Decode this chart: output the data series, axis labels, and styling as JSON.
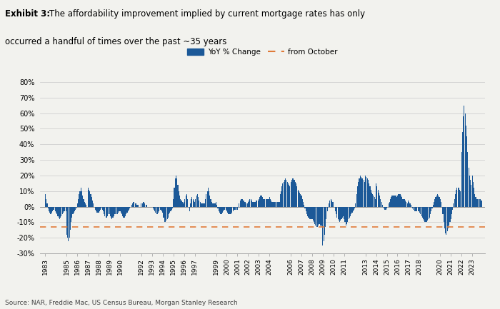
{
  "title_bold": "Exhibit 3:",
  "title_normal": "  The affordability improvement implied by current mortgage rates has only\n  occurred a handful of times over the past ~35 years",
  "source": "Source: NAR, Freddie Mac, US Census Bureau, Morgan Stanley Research",
  "bar_color": "#1c5998",
  "dashed_color": "#e07b39",
  "dashed_value": -13.0,
  "ylim": [
    -30,
    85
  ],
  "yticks": [
    -30,
    -20,
    -10,
    0,
    10,
    20,
    30,
    40,
    50,
    60,
    70,
    80
  ],
  "ytick_labels": [
    "-30%",
    "-20%",
    "-10%",
    "0%",
    "10%",
    "20%",
    "30%",
    "40%",
    "50%",
    "60%",
    "70%",
    "80%"
  ],
  "legend_bar_label": "YoY % Change",
  "legend_dash_label": "from October",
  "background_color": "#f2f2ee",
  "xlim_min": 1982.5,
  "xlim_max": 2024.2,
  "shown_years": [
    1983,
    1985,
    1986,
    1987,
    1988,
    1989,
    1990,
    1992,
    1993,
    1994,
    1995,
    1996,
    1997,
    1999,
    2000,
    2001,
    2002,
    2003,
    2004,
    2006,
    2007,
    2008,
    2009,
    2010,
    2011,
    2013,
    2014,
    2015,
    2016,
    2017,
    2018,
    2020,
    2021,
    2022,
    2023
  ],
  "monthly_data": [
    [
      1983.0,
      8
    ],
    [
      1983.08,
      5
    ],
    [
      1983.17,
      2
    ],
    [
      1983.25,
      -1
    ],
    [
      1983.33,
      -3
    ],
    [
      1983.42,
      -4
    ],
    [
      1983.5,
      -5
    ],
    [
      1983.58,
      -4
    ],
    [
      1983.67,
      -3
    ],
    [
      1983.75,
      -2
    ],
    [
      1983.83,
      -2
    ],
    [
      1983.92,
      -3
    ],
    [
      1984.0,
      -4
    ],
    [
      1984.08,
      -5
    ],
    [
      1984.17,
      -6
    ],
    [
      1984.25,
      -7
    ],
    [
      1984.33,
      -8
    ],
    [
      1984.42,
      -7
    ],
    [
      1984.5,
      -6
    ],
    [
      1984.58,
      -5
    ],
    [
      1984.67,
      -4
    ],
    [
      1984.75,
      -3
    ],
    [
      1984.83,
      -3
    ],
    [
      1984.92,
      -3
    ],
    [
      1985.0,
      -18
    ],
    [
      1985.08,
      -20
    ],
    [
      1985.17,
      -22
    ],
    [
      1985.25,
      -20
    ],
    [
      1985.33,
      -15
    ],
    [
      1985.42,
      -10
    ],
    [
      1985.5,
      -7
    ],
    [
      1985.58,
      -5
    ],
    [
      1985.67,
      -4
    ],
    [
      1985.75,
      -3
    ],
    [
      1985.83,
      -2
    ],
    [
      1985.92,
      -1
    ],
    [
      1986.0,
      2
    ],
    [
      1986.08,
      5
    ],
    [
      1986.17,
      8
    ],
    [
      1986.25,
      10
    ],
    [
      1986.33,
      12
    ],
    [
      1986.42,
      10
    ],
    [
      1986.5,
      7
    ],
    [
      1986.58,
      5
    ],
    [
      1986.67,
      3
    ],
    [
      1986.75,
      2
    ],
    [
      1986.83,
      1
    ],
    [
      1986.92,
      0
    ],
    [
      1987.0,
      12
    ],
    [
      1987.08,
      11
    ],
    [
      1987.17,
      10
    ],
    [
      1987.25,
      8
    ],
    [
      1987.33,
      6
    ],
    [
      1987.42,
      4
    ],
    [
      1987.5,
      2
    ],
    [
      1987.58,
      0
    ],
    [
      1987.67,
      -2
    ],
    [
      1987.75,
      -3
    ],
    [
      1987.83,
      -4
    ],
    [
      1987.92,
      -4
    ],
    [
      1988.0,
      -4
    ],
    [
      1988.08,
      -3
    ],
    [
      1988.17,
      -2
    ],
    [
      1988.25,
      -1
    ],
    [
      1988.33,
      -2
    ],
    [
      1988.42,
      -3
    ],
    [
      1988.5,
      -5
    ],
    [
      1988.58,
      -6
    ],
    [
      1988.67,
      -7
    ],
    [
      1988.75,
      -7
    ],
    [
      1988.83,
      -6
    ],
    [
      1988.92,
      -5
    ],
    [
      1989.0,
      -5
    ],
    [
      1989.08,
      -6
    ],
    [
      1989.17,
      -7
    ],
    [
      1989.25,
      -8
    ],
    [
      1989.33,
      -7
    ],
    [
      1989.42,
      -6
    ],
    [
      1989.5,
      -5
    ],
    [
      1989.58,
      -5
    ],
    [
      1989.67,
      -5
    ],
    [
      1989.75,
      -5
    ],
    [
      1989.83,
      -4
    ],
    [
      1989.92,
      -3
    ],
    [
      1990.0,
      -3
    ],
    [
      1990.08,
      -4
    ],
    [
      1990.17,
      -5
    ],
    [
      1990.25,
      -6
    ],
    [
      1990.33,
      -7
    ],
    [
      1990.42,
      -7
    ],
    [
      1990.5,
      -6
    ],
    [
      1990.58,
      -5
    ],
    [
      1990.67,
      -4
    ],
    [
      1990.75,
      -3
    ],
    [
      1990.83,
      -2
    ],
    [
      1990.92,
      -1
    ],
    [
      1991.0,
      0
    ],
    [
      1991.08,
      1
    ],
    [
      1991.17,
      2
    ],
    [
      1991.25,
      3
    ],
    [
      1991.33,
      3
    ],
    [
      1991.42,
      2
    ],
    [
      1991.5,
      2
    ],
    [
      1991.58,
      1
    ],
    [
      1991.67,
      1
    ],
    [
      1991.75,
      0
    ],
    [
      1991.83,
      0
    ],
    [
      1991.92,
      0
    ],
    [
      1992.0,
      2
    ],
    [
      1992.08,
      2
    ],
    [
      1992.17,
      3
    ],
    [
      1992.25,
      3
    ],
    [
      1992.33,
      2
    ],
    [
      1992.42,
      1
    ],
    [
      1992.5,
      1
    ],
    [
      1992.58,
      0
    ],
    [
      1992.67,
      0
    ],
    [
      1992.75,
      0
    ],
    [
      1992.83,
      0
    ],
    [
      1992.92,
      0
    ],
    [
      1993.0,
      0
    ],
    [
      1993.08,
      -1
    ],
    [
      1993.17,
      -2
    ],
    [
      1993.25,
      -3
    ],
    [
      1993.33,
      -4
    ],
    [
      1993.42,
      -5
    ],
    [
      1993.5,
      -5
    ],
    [
      1993.58,
      -4
    ],
    [
      1993.67,
      -3
    ],
    [
      1993.75,
      -2
    ],
    [
      1993.83,
      -2
    ],
    [
      1993.92,
      -3
    ],
    [
      1994.0,
      -4
    ],
    [
      1994.08,
      -7
    ],
    [
      1994.17,
      -10
    ],
    [
      1994.25,
      -10
    ],
    [
      1994.33,
      -9
    ],
    [
      1994.42,
      -8
    ],
    [
      1994.5,
      -7
    ],
    [
      1994.58,
      -5
    ],
    [
      1994.67,
      -4
    ],
    [
      1994.75,
      -3
    ],
    [
      1994.83,
      -2
    ],
    [
      1994.92,
      -1
    ],
    [
      1995.0,
      5
    ],
    [
      1995.08,
      12
    ],
    [
      1995.17,
      18
    ],
    [
      1995.25,
      20
    ],
    [
      1995.33,
      18
    ],
    [
      1995.42,
      14
    ],
    [
      1995.5,
      10
    ],
    [
      1995.58,
      7
    ],
    [
      1995.67,
      5
    ],
    [
      1995.75,
      4
    ],
    [
      1995.83,
      3
    ],
    [
      1995.92,
      2
    ],
    [
      1996.0,
      3
    ],
    [
      1996.08,
      5
    ],
    [
      1996.17,
      7
    ],
    [
      1996.25,
      8
    ],
    [
      1996.33,
      5
    ],
    [
      1996.42,
      0
    ],
    [
      1996.5,
      -3
    ],
    [
      1996.58,
      2
    ],
    [
      1996.67,
      5
    ],
    [
      1996.75,
      6
    ],
    [
      1996.83,
      5
    ],
    [
      1996.92,
      4
    ],
    [
      1997.0,
      3
    ],
    [
      1997.08,
      5
    ],
    [
      1997.17,
      7
    ],
    [
      1997.25,
      8
    ],
    [
      1997.33,
      6
    ],
    [
      1997.42,
      4
    ],
    [
      1997.5,
      3
    ],
    [
      1997.58,
      2
    ],
    [
      1997.67,
      2
    ],
    [
      1997.75,
      2
    ],
    [
      1997.83,
      2
    ],
    [
      1997.92,
      2
    ],
    [
      1998.0,
      5
    ],
    [
      1998.08,
      8
    ],
    [
      1998.17,
      10
    ],
    [
      1998.25,
      12
    ],
    [
      1998.33,
      10
    ],
    [
      1998.42,
      7
    ],
    [
      1998.5,
      5
    ],
    [
      1998.58,
      3
    ],
    [
      1998.67,
      2
    ],
    [
      1998.75,
      2
    ],
    [
      1998.83,
      2
    ],
    [
      1998.92,
      2
    ],
    [
      1999.0,
      3
    ],
    [
      1999.08,
      1
    ],
    [
      1999.17,
      -1
    ],
    [
      1999.25,
      -3
    ],
    [
      1999.33,
      -4
    ],
    [
      1999.42,
      -5
    ],
    [
      1999.5,
      -5
    ],
    [
      1999.58,
      -4
    ],
    [
      1999.67,
      -3
    ],
    [
      1999.75,
      -2
    ],
    [
      1999.83,
      -2
    ],
    [
      1999.92,
      -2
    ],
    [
      2000.0,
      -3
    ],
    [
      2000.08,
      -4
    ],
    [
      2000.17,
      -5
    ],
    [
      2000.25,
      -5
    ],
    [
      2000.33,
      -5
    ],
    [
      2000.42,
      -5
    ],
    [
      2000.5,
      -4
    ],
    [
      2000.58,
      -3
    ],
    [
      2000.67,
      -2
    ],
    [
      2000.75,
      -2
    ],
    [
      2000.83,
      -2
    ],
    [
      2000.92,
      -2
    ],
    [
      2001.0,
      -2
    ],
    [
      2001.08,
      0
    ],
    [
      2001.17,
      2
    ],
    [
      2001.25,
      4
    ],
    [
      2001.33,
      5
    ],
    [
      2001.42,
      5
    ],
    [
      2001.5,
      5
    ],
    [
      2001.58,
      4
    ],
    [
      2001.67,
      3
    ],
    [
      2001.75,
      3
    ],
    [
      2001.83,
      2
    ],
    [
      2001.92,
      2
    ],
    [
      2002.0,
      3
    ],
    [
      2002.08,
      4
    ],
    [
      2002.17,
      5
    ],
    [
      2002.25,
      5
    ],
    [
      2002.33,
      4
    ],
    [
      2002.42,
      3
    ],
    [
      2002.5,
      3
    ],
    [
      2002.58,
      3
    ],
    [
      2002.67,
      3
    ],
    [
      2002.75,
      4
    ],
    [
      2002.83,
      4
    ],
    [
      2002.92,
      4
    ],
    [
      2003.0,
      5
    ],
    [
      2003.08,
      6
    ],
    [
      2003.17,
      7
    ],
    [
      2003.25,
      7
    ],
    [
      2003.33,
      6
    ],
    [
      2003.42,
      5
    ],
    [
      2003.5,
      5
    ],
    [
      2003.58,
      5
    ],
    [
      2003.67,
      5
    ],
    [
      2003.75,
      5
    ],
    [
      2003.83,
      5
    ],
    [
      2003.92,
      5
    ],
    [
      2004.0,
      6
    ],
    [
      2004.08,
      5
    ],
    [
      2004.17,
      4
    ],
    [
      2004.25,
      3
    ],
    [
      2004.33,
      3
    ],
    [
      2004.42,
      3
    ],
    [
      2004.5,
      3
    ],
    [
      2004.58,
      3
    ],
    [
      2004.67,
      3
    ],
    [
      2004.75,
      3
    ],
    [
      2004.83,
      3
    ],
    [
      2004.92,
      3
    ],
    [
      2005.0,
      8
    ],
    [
      2005.08,
      10
    ],
    [
      2005.17,
      13
    ],
    [
      2005.25,
      15
    ],
    [
      2005.33,
      16
    ],
    [
      2005.42,
      17
    ],
    [
      2005.5,
      18
    ],
    [
      2005.58,
      17
    ],
    [
      2005.67,
      16
    ],
    [
      2005.75,
      15
    ],
    [
      2005.83,
      14
    ],
    [
      2005.92,
      13
    ],
    [
      2006.0,
      16
    ],
    [
      2006.08,
      17
    ],
    [
      2006.17,
      18
    ],
    [
      2006.25,
      18
    ],
    [
      2006.33,
      17
    ],
    [
      2006.42,
      16
    ],
    [
      2006.5,
      15
    ],
    [
      2006.58,
      13
    ],
    [
      2006.67,
      11
    ],
    [
      2006.75,
      10
    ],
    [
      2006.83,
      9
    ],
    [
      2006.92,
      8
    ],
    [
      2007.0,
      7
    ],
    [
      2007.08,
      5
    ],
    [
      2007.17,
      3
    ],
    [
      2007.25,
      1
    ],
    [
      2007.33,
      -1
    ],
    [
      2007.42,
      -3
    ],
    [
      2007.5,
      -5
    ],
    [
      2007.58,
      -6
    ],
    [
      2007.67,
      -7
    ],
    [
      2007.75,
      -8
    ],
    [
      2007.83,
      -8
    ],
    [
      2007.92,
      -8
    ],
    [
      2008.0,
      -8
    ],
    [
      2008.08,
      -9
    ],
    [
      2008.17,
      -10
    ],
    [
      2008.25,
      -11
    ],
    [
      2008.33,
      -12
    ],
    [
      2008.42,
      -13
    ],
    [
      2008.5,
      -13
    ],
    [
      2008.58,
      -12
    ],
    [
      2008.67,
      -11
    ],
    [
      2008.75,
      -12
    ],
    [
      2008.83,
      -13
    ],
    [
      2008.92,
      -12
    ],
    [
      2009.0,
      -25
    ],
    [
      2009.08,
      -22
    ],
    [
      2009.17,
      -18
    ],
    [
      2009.25,
      -13
    ],
    [
      2009.33,
      -8
    ],
    [
      2009.42,
      -3
    ],
    [
      2009.5,
      0
    ],
    [
      2009.58,
      2
    ],
    [
      2009.67,
      4
    ],
    [
      2009.75,
      5
    ],
    [
      2009.83,
      4
    ],
    [
      2009.92,
      3
    ],
    [
      2010.0,
      3
    ],
    [
      2010.08,
      0
    ],
    [
      2010.17,
      -3
    ],
    [
      2010.25,
      -5
    ],
    [
      2010.33,
      -7
    ],
    [
      2010.42,
      -8
    ],
    [
      2010.5,
      -9
    ],
    [
      2010.58,
      -10
    ],
    [
      2010.67,
      -9
    ],
    [
      2010.75,
      -8
    ],
    [
      2010.83,
      -7
    ],
    [
      2010.92,
      -6
    ],
    [
      2011.0,
      -8
    ],
    [
      2011.08,
      -10
    ],
    [
      2011.17,
      -12
    ],
    [
      2011.25,
      -11
    ],
    [
      2011.33,
      -10
    ],
    [
      2011.42,
      -8
    ],
    [
      2011.5,
      -7
    ],
    [
      2011.58,
      -6
    ],
    [
      2011.67,
      -5
    ],
    [
      2011.75,
      -4
    ],
    [
      2011.83,
      -3
    ],
    [
      2011.92,
      -2
    ],
    [
      2012.0,
      -1
    ],
    [
      2012.08,
      2
    ],
    [
      2012.17,
      8
    ],
    [
      2012.25,
      13
    ],
    [
      2012.33,
      16
    ],
    [
      2012.42,
      18
    ],
    [
      2012.5,
      20
    ],
    [
      2012.58,
      19
    ],
    [
      2012.67,
      18
    ],
    [
      2012.75,
      18
    ],
    [
      2012.83,
      17
    ],
    [
      2012.92,
      16
    ],
    [
      2013.0,
      20
    ],
    [
      2013.08,
      19
    ],
    [
      2013.17,
      18
    ],
    [
      2013.25,
      17
    ],
    [
      2013.33,
      15
    ],
    [
      2013.42,
      13
    ],
    [
      2013.5,
      11
    ],
    [
      2013.58,
      9
    ],
    [
      2013.67,
      8
    ],
    [
      2013.75,
      7
    ],
    [
      2013.83,
      6
    ],
    [
      2013.92,
      5
    ],
    [
      2014.0,
      15
    ],
    [
      2014.08,
      13
    ],
    [
      2014.17,
      11
    ],
    [
      2014.25,
      9
    ],
    [
      2014.33,
      7
    ],
    [
      2014.42,
      5
    ],
    [
      2014.5,
      3
    ],
    [
      2014.58,
      1
    ],
    [
      2014.67,
      0
    ],
    [
      2014.75,
      -1
    ],
    [
      2014.83,
      -2
    ],
    [
      2014.92,
      -2
    ],
    [
      2015.0,
      -1
    ],
    [
      2015.08,
      0
    ],
    [
      2015.17,
      2
    ],
    [
      2015.25,
      3
    ],
    [
      2015.33,
      5
    ],
    [
      2015.42,
      6
    ],
    [
      2015.5,
      7
    ],
    [
      2015.58,
      7
    ],
    [
      2015.67,
      7
    ],
    [
      2015.75,
      7
    ],
    [
      2015.83,
      7
    ],
    [
      2015.92,
      6
    ],
    [
      2016.0,
      7
    ],
    [
      2016.08,
      8
    ],
    [
      2016.17,
      8
    ],
    [
      2016.25,
      8
    ],
    [
      2016.33,
      7
    ],
    [
      2016.42,
      6
    ],
    [
      2016.5,
      5
    ],
    [
      2016.58,
      5
    ],
    [
      2016.67,
      5
    ],
    [
      2016.75,
      4
    ],
    [
      2016.83,
      3
    ],
    [
      2016.92,
      2
    ],
    [
      2017.0,
      4
    ],
    [
      2017.08,
      3
    ],
    [
      2017.17,
      2
    ],
    [
      2017.25,
      1
    ],
    [
      2017.33,
      0
    ],
    [
      2017.42,
      -1
    ],
    [
      2017.5,
      -2
    ],
    [
      2017.58,
      -3
    ],
    [
      2017.67,
      -3
    ],
    [
      2017.75,
      -3
    ],
    [
      2017.83,
      -3
    ],
    [
      2017.92,
      -3
    ],
    [
      2018.0,
      -3
    ],
    [
      2018.08,
      -4
    ],
    [
      2018.17,
      -5
    ],
    [
      2018.25,
      -6
    ],
    [
      2018.33,
      -7
    ],
    [
      2018.42,
      -8
    ],
    [
      2018.5,
      -9
    ],
    [
      2018.58,
      -10
    ],
    [
      2018.67,
      -10
    ],
    [
      2018.75,
      -10
    ],
    [
      2018.83,
      -9
    ],
    [
      2018.92,
      -8
    ],
    [
      2019.0,
      -7
    ],
    [
      2019.08,
      -5
    ],
    [
      2019.17,
      -3
    ],
    [
      2019.25,
      -1
    ],
    [
      2019.33,
      1
    ],
    [
      2019.42,
      3
    ],
    [
      2019.5,
      5
    ],
    [
      2019.58,
      6
    ],
    [
      2019.67,
      7
    ],
    [
      2019.75,
      8
    ],
    [
      2019.83,
      7
    ],
    [
      2019.92,
      6
    ],
    [
      2020.0,
      5
    ],
    [
      2020.08,
      3
    ],
    [
      2020.17,
      0
    ],
    [
      2020.25,
      -5
    ],
    [
      2020.33,
      -10
    ],
    [
      2020.42,
      -14
    ],
    [
      2020.5,
      -17
    ],
    [
      2020.58,
      -18
    ],
    [
      2020.67,
      -16
    ],
    [
      2020.75,
      -14
    ],
    [
      2020.83,
      -12
    ],
    [
      2020.92,
      -10
    ],
    [
      2021.0,
      -8
    ],
    [
      2021.08,
      -5
    ],
    [
      2021.17,
      -2
    ],
    [
      2021.25,
      2
    ],
    [
      2021.33,
      5
    ],
    [
      2021.42,
      8
    ],
    [
      2021.5,
      11
    ],
    [
      2021.58,
      12
    ],
    [
      2021.67,
      12
    ],
    [
      2021.75,
      12
    ],
    [
      2021.83,
      11
    ],
    [
      2021.92,
      10
    ],
    [
      2022.0,
      35
    ],
    [
      2022.08,
      48
    ],
    [
      2022.17,
      58
    ],
    [
      2022.25,
      65
    ],
    [
      2022.33,
      60
    ],
    [
      2022.42,
      52
    ],
    [
      2022.5,
      45
    ],
    [
      2022.58,
      35
    ],
    [
      2022.67,
      25
    ],
    [
      2022.75,
      20
    ],
    [
      2022.83,
      17
    ],
    [
      2022.92,
      14
    ],
    [
      2023.0,
      20
    ],
    [
      2023.08,
      16
    ],
    [
      2023.17,
      12
    ],
    [
      2023.25,
      8
    ],
    [
      2023.33,
      6
    ],
    [
      2023.42,
      5
    ],
    [
      2023.5,
      5
    ],
    [
      2023.58,
      5
    ],
    [
      2023.67,
      5
    ],
    [
      2023.75,
      5
    ],
    [
      2023.83,
      4
    ],
    [
      2023.92,
      4
    ]
  ]
}
